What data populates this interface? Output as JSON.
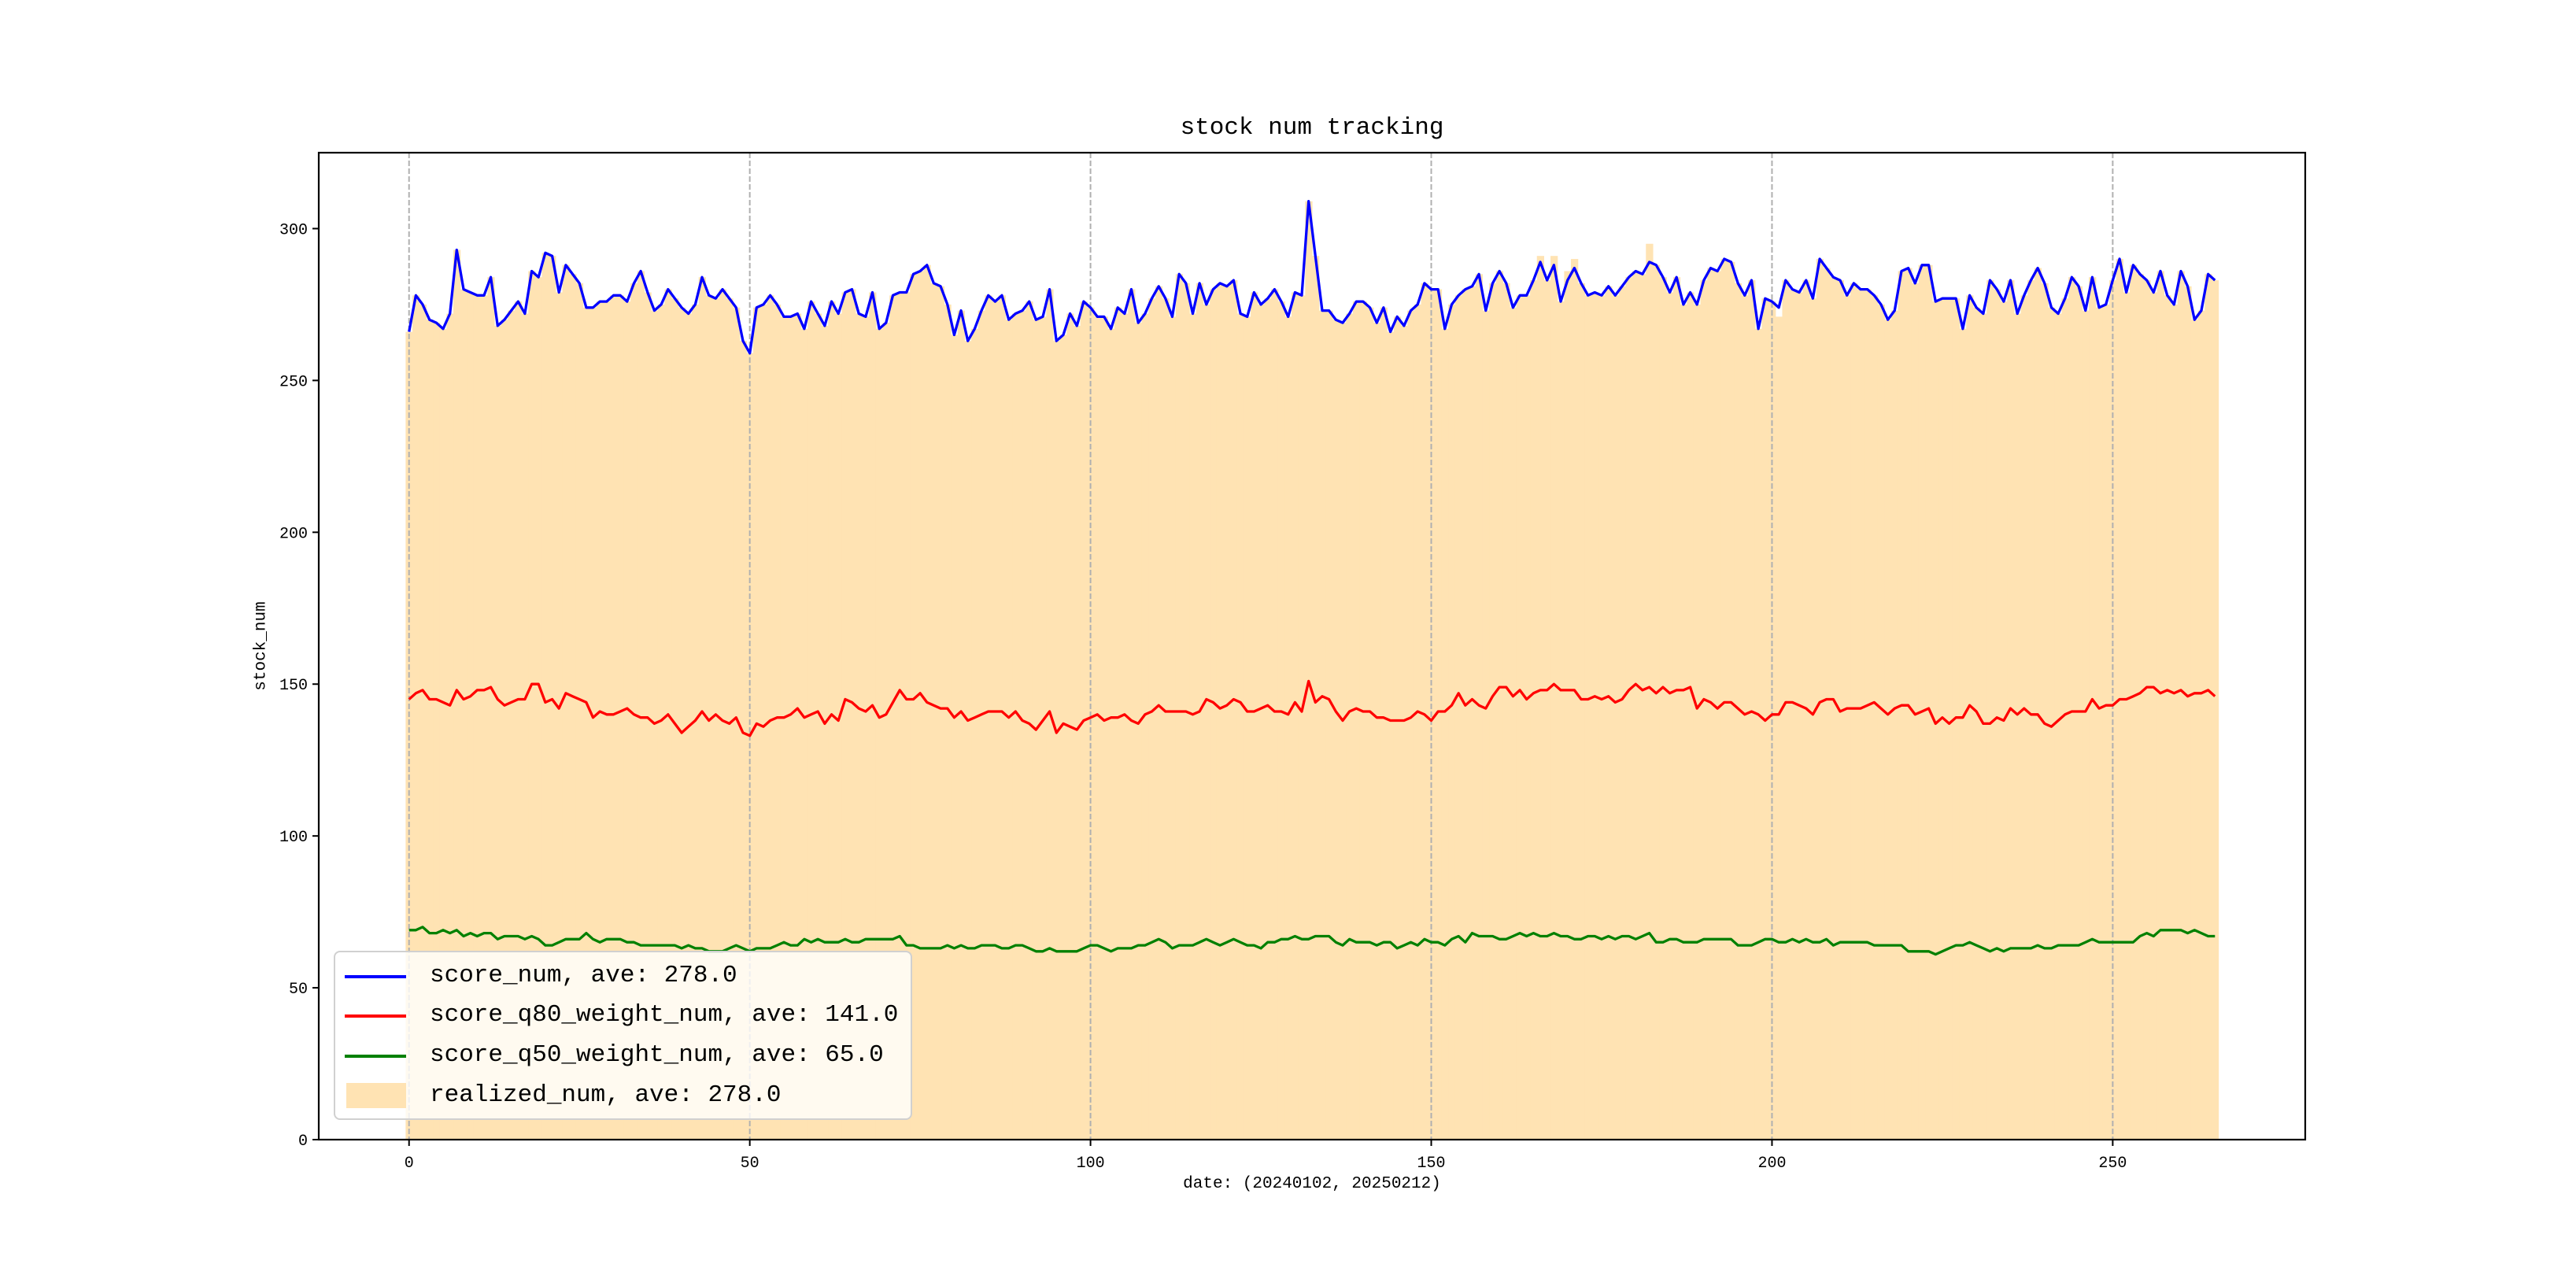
{
  "chart_data": {
    "type": "line",
    "title": "stock num tracking",
    "xlabel": "date: (20240102, 20250212)",
    "ylabel": "stock_num",
    "xlim": [
      -13.25,
      278.25
    ],
    "ylim": [
      0,
      325
    ],
    "xticks": [
      0,
      50,
      100,
      150,
      200,
      250
    ],
    "yticks": [
      0,
      50,
      100,
      150,
      200,
      250,
      300
    ],
    "grid": "x-axis dashed vertical",
    "legend_position": "lower-left",
    "colors": {
      "score_num": "#0000ff",
      "score_q80_weight_num": "#ff0000",
      "score_q50_weight_num": "#008000",
      "realized_num": "#ffe3b3",
      "grid": "#b0b0b0"
    },
    "legend": [
      {
        "key": "score_num",
        "label": "score_num, ave: 278.0",
        "kind": "line"
      },
      {
        "key": "score_q80_weight_num",
        "label": "score_q80_weight_num, ave: 141.0",
        "kind": "line"
      },
      {
        "key": "score_q50_weight_num",
        "label": "score_q50_weight_num, ave: 65.0",
        "kind": "line"
      },
      {
        "key": "realized_num",
        "label": "realized_num, ave: 278.0",
        "kind": "bar"
      }
    ],
    "series": [
      {
        "name": "score_num",
        "type": "line",
        "values": [
          266,
          278,
          275,
          270,
          269,
          267,
          272,
          293,
          280,
          279,
          278,
          278,
          284,
          268,
          270,
          273,
          276,
          272,
          286,
          284,
          292,
          291,
          279,
          288,
          285,
          282,
          274,
          274,
          276,
          276,
          278,
          278,
          276,
          282,
          286,
          279,
          273,
          275,
          280,
          277,
          274,
          272,
          275,
          284,
          278,
          277,
          280,
          277,
          274,
          263,
          259,
          274,
          275,
          278,
          275,
          271,
          271,
          272,
          267,
          276,
          272,
          268,
          276,
          272,
          279,
          280,
          272,
          271,
          279,
          267,
          269,
          278,
          279,
          279,
          285,
          286,
          288,
          282,
          281,
          275,
          265,
          273,
          263,
          267,
          273,
          278,
          276,
          278,
          270,
          272,
          273,
          276,
          270,
          271,
          280,
          263,
          265,
          272,
          268,
          276,
          274,
          271,
          271,
          267,
          274,
          272,
          280,
          269,
          272,
          277,
          281,
          277,
          271,
          285,
          282,
          272,
          282,
          275,
          280,
          282,
          281,
          283,
          272,
          271,
          279,
          275,
          277,
          280,
          276,
          271,
          279,
          278,
          309,
          291,
          273,
          273,
          270,
          269,
          272,
          276,
          276,
          274,
          269,
          274,
          266,
          271,
          268,
          273,
          275,
          282,
          280,
          280,
          267,
          275,
          278,
          280,
          281,
          285,
          273,
          282,
          286,
          282,
          274,
          278,
          278,
          283,
          289,
          283,
          288,
          276,
          283,
          287,
          282,
          278,
          279,
          278,
          281,
          278,
          281,
          284,
          286,
          285,
          289,
          288,
          284,
          279,
          284,
          275,
          279,
          275,
          283,
          287,
          286,
          290,
          289,
          282,
          278,
          283,
          267,
          277,
          276,
          274,
          283,
          280,
          279,
          283,
          277,
          290,
          287,
          284,
          283,
          278,
          282,
          280,
          280,
          278,
          275,
          270,
          273,
          286,
          287,
          282,
          288,
          288,
          276,
          277,
          277,
          277,
          267,
          278,
          274,
          272,
          283,
          280,
          276,
          283,
          272,
          278,
          283,
          287,
          282,
          274,
          272,
          277,
          284,
          281,
          273,
          284,
          274,
          275,
          283,
          290,
          279,
          288,
          285,
          283,
          279,
          286,
          278,
          275,
          286,
          281,
          270,
          273,
          285,
          283
        ]
      },
      {
        "name": "score_q80_weight_num",
        "type": "line",
        "values": [
          145,
          147,
          148,
          145,
          145,
          144,
          143,
          148,
          145,
          146,
          148,
          148,
          149,
          145,
          143,
          144,
          145,
          145,
          150,
          150,
          144,
          145,
          142,
          147,
          146,
          145,
          144,
          139,
          141,
          140,
          140,
          141,
          142,
          140,
          139,
          139,
          137,
          138,
          140,
          137,
          134,
          136,
          138,
          141,
          138,
          140,
          138,
          137,
          139,
          134,
          133,
          137,
          136,
          138,
          139,
          139,
          140,
          142,
          139,
          140,
          141,
          137,
          140,
          138,
          145,
          144,
          142,
          141,
          143,
          139,
          140,
          144,
          148,
          145,
          145,
          147,
          144,
          143,
          142,
          142,
          139,
          141,
          138,
          139,
          140,
          141,
          141,
          141,
          139,
          141,
          138,
          137,
          135,
          138,
          141,
          134,
          137,
          136,
          135,
          138,
          139,
          140,
          138,
          139,
          139,
          140,
          138,
          137,
          140,
          141,
          143,
          141,
          141,
          141,
          141,
          140,
          141,
          145,
          144,
          142,
          143,
          145,
          144,
          141,
          141,
          142,
          143,
          141,
          141,
          140,
          144,
          141,
          151,
          144,
          146,
          145,
          141,
          138,
          141,
          142,
          141,
          141,
          139,
          139,
          138,
          138,
          138,
          139,
          141,
          140,
          138,
          141,
          141,
          143,
          147,
          143,
          145,
          143,
          142,
          146,
          149,
          149,
          146,
          148,
          145,
          147,
          148,
          148,
          150,
          148,
          148,
          148,
          145,
          145,
          146,
          145,
          146,
          144,
          145,
          148,
          150,
          148,
          149,
          147,
          149,
          147,
          148,
          148,
          149,
          142,
          145,
          144,
          142,
          144,
          144,
          142,
          140,
          141,
          140,
          138,
          140,
          140,
          144,
          144,
          143,
          142,
          140,
          144,
          145,
          145,
          141,
          142,
          142,
          142,
          143,
          144,
          142,
          140,
          142,
          143,
          143,
          140,
          141,
          142,
          137,
          139,
          137,
          139,
          139,
          143,
          141,
          137,
          137,
          139,
          138,
          142,
          140,
          142,
          140,
          140,
          137,
          136,
          138,
          140,
          141,
          141,
          141,
          145,
          142,
          143,
          143,
          145,
          145,
          146,
          147,
          149,
          149,
          147,
          148,
          147,
          148,
          146,
          147,
          147,
          148,
          146
        ]
      },
      {
        "name": "score_q50_weight_num",
        "type": "line",
        "values": [
          69,
          69,
          70,
          68,
          68,
          69,
          68,
          69,
          67,
          68,
          67,
          68,
          68,
          66,
          67,
          67,
          67,
          66,
          67,
          66,
          64,
          64,
          65,
          66,
          66,
          66,
          68,
          66,
          65,
          66,
          66,
          66,
          65,
          65,
          64,
          64,
          64,
          64,
          64,
          64,
          63,
          64,
          63,
          63,
          62,
          62,
          62,
          63,
          64,
          63,
          62,
          63,
          63,
          63,
          64,
          65,
          64,
          64,
          66,
          65,
          66,
          65,
          65,
          65,
          66,
          65,
          65,
          66,
          66,
          66,
          66,
          66,
          67,
          64,
          64,
          63,
          63,
          63,
          63,
          64,
          63,
          64,
          63,
          63,
          64,
          64,
          64,
          63,
          63,
          64,
          64,
          63,
          62,
          62,
          63,
          62,
          62,
          62,
          62,
          63,
          64,
          64,
          63,
          62,
          63,
          63,
          63,
          64,
          64,
          65,
          66,
          65,
          63,
          64,
          64,
          64,
          65,
          66,
          65,
          64,
          65,
          66,
          65,
          64,
          64,
          63,
          65,
          65,
          66,
          66,
          67,
          66,
          66,
          67,
          67,
          67,
          65,
          64,
          66,
          65,
          65,
          65,
          64,
          65,
          65,
          63,
          64,
          65,
          64,
          66,
          65,
          65,
          64,
          66,
          67,
          65,
          68,
          67,
          67,
          67,
          66,
          66,
          67,
          68,
          67,
          68,
          67,
          67,
          68,
          67,
          67,
          66,
          66,
          67,
          67,
          66,
          67,
          66,
          67,
          67,
          66,
          67,
          68,
          65,
          65,
          66,
          66,
          65,
          65,
          65,
          66,
          66,
          66,
          66,
          66,
          64,
          64,
          64,
          65,
          66,
          66,
          65,
          65,
          66,
          65,
          66,
          65,
          65,
          66,
          64,
          65,
          65,
          65,
          65,
          65,
          64,
          64,
          64,
          64,
          64,
          62,
          62,
          62,
          62,
          61,
          62,
          63,
          64,
          64,
          65,
          64,
          63,
          62,
          63,
          62,
          63,
          63,
          63,
          63,
          64,
          63,
          63,
          64,
          64,
          64,
          64,
          65,
          66,
          65,
          65,
          65,
          65,
          65,
          65,
          67,
          68,
          67,
          69,
          69,
          69,
          69,
          68,
          69,
          68,
          67,
          67
        ]
      },
      {
        "name": "realized_num",
        "type": "bar",
        "values": [
          266,
          278,
          275,
          270,
          269,
          267,
          272,
          293,
          280,
          279,
          278,
          278,
          284,
          268,
          270,
          273,
          276,
          272,
          286,
          284,
          292,
          291,
          279,
          288,
          285,
          282,
          274,
          274,
          276,
          276,
          278,
          278,
          276,
          282,
          286,
          279,
          273,
          275,
          280,
          277,
          274,
          272,
          275,
          284,
          278,
          277,
          280,
          277,
          274,
          263,
          259,
          274,
          275,
          278,
          275,
          271,
          271,
          272,
          267,
          276,
          272,
          268,
          276,
          272,
          279,
          280,
          272,
          271,
          279,
          267,
          269,
          278,
          279,
          279,
          285,
          286,
          288,
          282,
          281,
          275,
          265,
          273,
          263,
          267,
          273,
          278,
          276,
          278,
          270,
          272,
          273,
          276,
          270,
          271,
          280,
          263,
          265,
          272,
          268,
          276,
          274,
          271,
          271,
          267,
          274,
          272,
          280,
          269,
          272,
          277,
          281,
          277,
          271,
          285,
          282,
          272,
          282,
          275,
          280,
          282,
          281,
          283,
          272,
          271,
          279,
          275,
          277,
          280,
          276,
          271,
          279,
          278,
          309,
          291,
          273,
          273,
          270,
          269,
          272,
          276,
          276,
          274,
          269,
          274,
          266,
          271,
          268,
          273,
          275,
          282,
          280,
          280,
          267,
          275,
          278,
          280,
          281,
          285,
          273,
          282,
          286,
          282,
          274,
          278,
          278,
          283,
          291,
          283,
          291,
          276,
          286,
          290,
          282,
          278,
          279,
          278,
          281,
          278,
          281,
          284,
          286,
          285,
          295,
          288,
          284,
          279,
          284,
          275,
          279,
          275,
          283,
          287,
          286,
          290,
          289,
          282,
          278,
          283,
          267,
          277,
          276,
          271,
          283,
          280,
          279,
          283,
          277,
          290,
          287,
          284,
          283,
          278,
          282,
          280,
          280,
          278,
          275,
          270,
          273,
          286,
          287,
          282,
          288,
          288,
          276,
          277,
          277,
          277,
          267,
          278,
          274,
          272,
          283,
          280,
          276,
          283,
          272,
          278,
          283,
          287,
          282,
          274,
          272,
          277,
          284,
          281,
          273,
          284,
          274,
          275,
          283,
          290,
          279,
          288,
          285,
          283,
          279,
          286,
          278,
          275,
          286,
          281,
          270,
          273,
          285,
          283
        ]
      }
    ]
  }
}
